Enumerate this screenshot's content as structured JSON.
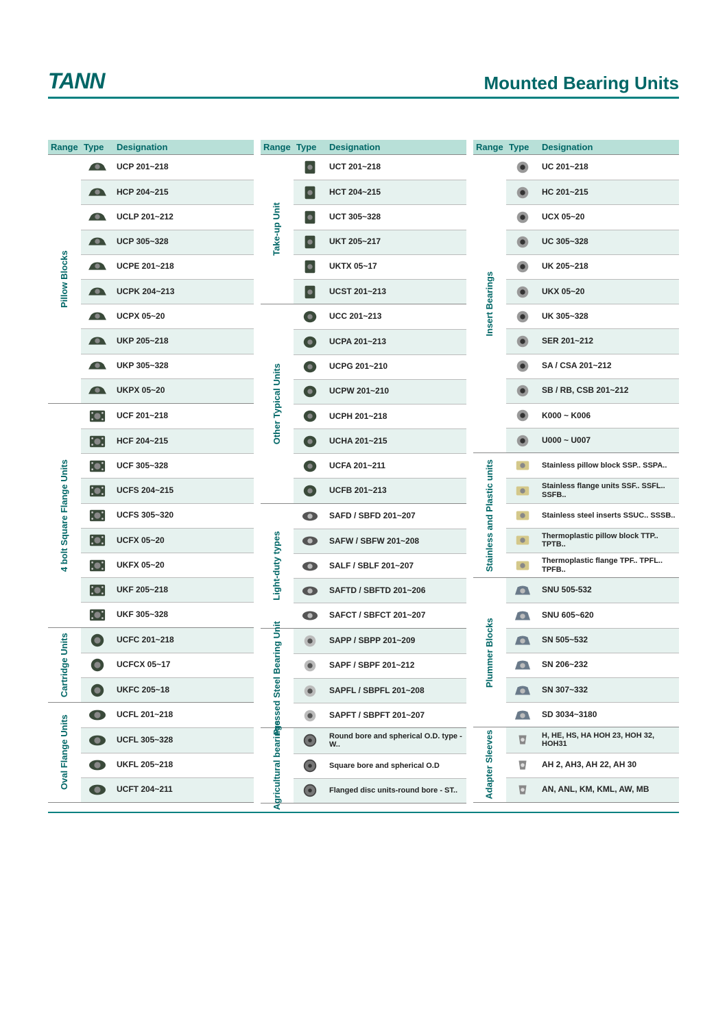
{
  "brand": "TANN",
  "page_title": "Mounted Bearing Units",
  "colors": {
    "accent": "#008080",
    "header_bg": "#b8e0d8",
    "alt_row": "#e6f2ef"
  },
  "column_headers": [
    "Range",
    "Type",
    "Designation"
  ],
  "columns": [
    {
      "sections": [
        {
          "range": "Pillow Blocks",
          "icon": "pillow",
          "items": [
            "UCP 201~218",
            "HCP 204~215",
            "UCLP 201~212",
            "UCP 305~328",
            "UCPE 201~218",
            "UCPK 204~213",
            "UCPX 05~20",
            "UKP 205~218",
            "UKP 305~328",
            "UKPX 05~20"
          ]
        },
        {
          "range": "4 bolt Square Flange Units",
          "icon": "square4",
          "items": [
            "UCF 201~218",
            "HCF 204~215",
            "UCF 305~328",
            "UCFS 204~215",
            "UCFS 305~320",
            "UCFX 05~20",
            "UKFX 05~20",
            "UKF 205~218",
            "UKF 305~328"
          ]
        },
        {
          "range": "Cartridge Units",
          "icon": "cartridge",
          "items": [
            "UCFC 201~218",
            "UCFCX 05~17",
            "UKFC 205~18"
          ]
        },
        {
          "range": "Oval Flange Units",
          "icon": "oval",
          "items": [
            "UCFL 201~218",
            "UCFL 305~328",
            "UKFL 205~218",
            "UCFT 204~211"
          ]
        }
      ]
    },
    {
      "sections": [
        {
          "range": "Take-up Unit",
          "icon": "takeup",
          "items": [
            "UCT 201~218",
            "HCT 204~215",
            "UCT 305~328",
            "UKT 205~217",
            "UKTX 05~17",
            "UCST 201~213"
          ]
        },
        {
          "range": "Other Typical Units",
          "icon": "other",
          "items": [
            "UCC 201~213",
            "UCPA 201~213",
            "UCPG 201~210",
            "UCPW 201~210",
            "UCPH 201~218",
            "UCHA 201~215",
            "UCFA 201~211",
            "UCFB 201~213"
          ]
        },
        {
          "range": "Light-duty types",
          "icon": "light",
          "items": [
            "SAFD / SBFD 201~207",
            "SAFW / SBFW 201~208",
            "SALF / SBLF 201~207",
            "SAFTD / SBFTD 201~206",
            "SAFCT / SBFCT 201~207"
          ]
        },
        {
          "range": "Pressed Steel Bearing Unit",
          "icon": "pressed",
          "items": [
            "SAPP / SBPP 201~209",
            "SAPF / SBPF 201~212",
            "SAPFL / SBPFL 201~208",
            "SAPFT / SBPFT 201~207"
          ]
        },
        {
          "range": "Agricultural bearings",
          "icon": "agri",
          "items": [
            "Round bore and spherical O.D. type - W..",
            "Square bore and spherical O.D",
            "Flanged disc units-round bore - ST.."
          ]
        }
      ]
    },
    {
      "sections": [
        {
          "range": "Insert Bearings",
          "icon": "insert",
          "items": [
            "UC 201~218",
            "HC 201~215",
            "UCX 05~20",
            "UC 305~328",
            "UK 205~218",
            "UKX 05~20",
            "UK 305~328",
            "SER 201~212",
            "SA / CSA 201~212",
            "SB / RB, CSB 201~212",
            "K000 ~ K006",
            "U000 ~ U007"
          ]
        },
        {
          "range": "Stainless and Plastic units",
          "icon": "ssplastic",
          "items": [
            "Stainless pillow block SSP.. SSPA..",
            "Stainless flange units SSF.. SSFL.. SSFB..",
            "Stainless steel inserts SSUC.. SSSB..",
            "Thermoplastic pillow block TTP.. TPTB..",
            "Thermoplastic flange TPF.. TPFL.. TPFB.."
          ]
        },
        {
          "range": "Plummer Blocks",
          "icon": "plummer",
          "items": [
            "SNU 505-532",
            "SNU 605~620",
            "SN 505~532",
            "SN 206~232",
            "SN 307~332",
            "SD 3034~3180"
          ]
        },
        {
          "range": "Adapter Sleeves",
          "icon": "sleeve",
          "items": [
            "H, HE, HS, HA HOH 23, HOH 32, HOH31",
            "AH 2, AH3, AH 22, AH 30",
            "AN, ANL, KM, KML, AW, MB"
          ]
        }
      ]
    }
  ]
}
